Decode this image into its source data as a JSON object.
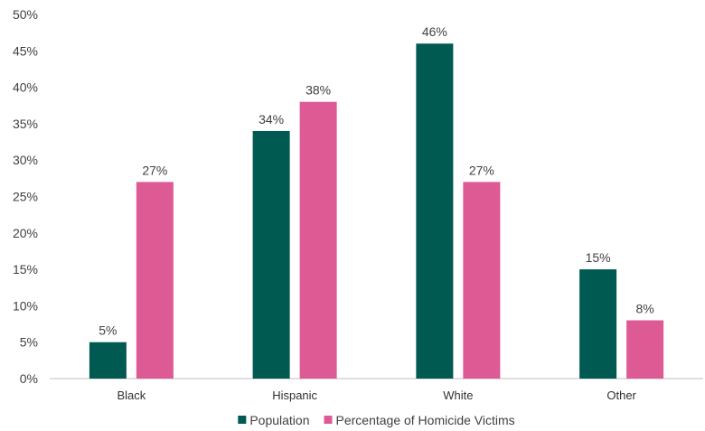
{
  "chart_data": {
    "type": "bar",
    "categories": [
      "Black",
      "Hispanic",
      "White",
      "Other"
    ],
    "series": [
      {
        "name": "Population",
        "values": [
          5,
          34,
          46,
          15
        ],
        "labels": [
          "5%",
          "34%",
          "46%",
          "15%"
        ],
        "color": "#005a52"
      },
      {
        "name": "Percentage of Homicide Victims",
        "values": [
          27,
          38,
          27,
          8
        ],
        "labels": [
          "27%",
          "38%",
          "27%",
          "8%"
        ],
        "color": "#de5a95"
      }
    ],
    "ylim": [
      0,
      50
    ],
    "yticks": [
      0,
      5,
      10,
      15,
      20,
      25,
      30,
      35,
      40,
      45,
      50
    ],
    "ytick_labels": [
      "0%",
      "5%",
      "10%",
      "15%",
      "20%",
      "25%",
      "30%",
      "35%",
      "40%",
      "45%",
      "50%"
    ],
    "grid": false,
    "legend_position": "bottom",
    "title": "",
    "xlabel": "",
    "ylabel": ""
  }
}
